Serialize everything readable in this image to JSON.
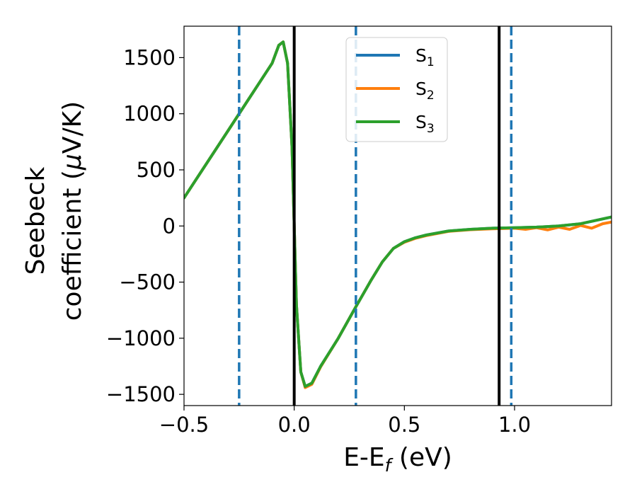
{
  "chart_data": {
    "type": "line",
    "title": "",
    "xlabel": {
      "main": "E-E",
      "sub": "f",
      "unit": " (eV)"
    },
    "ylabel": {
      "line1": "Seebeck",
      "line2": "coefficient  (",
      "mu": "μ",
      "unit": "V/K)"
    },
    "xlim": [
      -0.5,
      1.44
    ],
    "ylim": [
      -1600,
      1780
    ],
    "x_ticks": [
      -0.5,
      0.0,
      0.5,
      1.0
    ],
    "x_tick_labels": [
      "−0.5",
      "0.0",
      "0.5",
      "1.0"
    ],
    "y_ticks": [
      -1500,
      -1000,
      -500,
      0,
      500,
      1000,
      1500
    ],
    "y_tick_labels": [
      "−1500",
      "−1000",
      "−500",
      "0",
      "500",
      "1000",
      "1500"
    ],
    "grid": false,
    "legend_position": "top-center",
    "series": [
      {
        "name": "S",
        "sub": "1",
        "color": "#1f77b4",
        "x": [
          -0.5,
          -0.4,
          -0.3,
          -0.2,
          -0.1,
          -0.07,
          -0.05,
          -0.03,
          -0.01,
          0.0,
          0.01,
          0.03,
          0.05,
          0.08,
          0.12,
          0.2,
          0.28,
          0.35,
          0.4,
          0.45,
          0.5,
          0.55,
          0.6,
          0.7,
          0.8,
          0.9,
          1.0,
          1.1,
          1.2,
          1.3,
          1.44
        ],
        "y": [
          250,
          550,
          850,
          1150,
          1450,
          1610,
          1640,
          1450,
          700,
          0,
          -700,
          -1300,
          -1430,
          -1400,
          -1250,
          -1000,
          -720,
          -480,
          -320,
          -200,
          -140,
          -105,
          -80,
          -45,
          -30,
          -20,
          -15,
          -10,
          0,
          20,
          80
        ]
      },
      {
        "name": "S",
        "sub": "2",
        "color": "#ff7f0e",
        "x": [
          -0.5,
          -0.4,
          -0.3,
          -0.2,
          -0.1,
          -0.07,
          -0.05,
          -0.03,
          -0.01,
          0.0,
          0.01,
          0.03,
          0.05,
          0.08,
          0.12,
          0.2,
          0.28,
          0.35,
          0.4,
          0.45,
          0.5,
          0.55,
          0.6,
          0.7,
          0.8,
          0.9,
          1.0,
          1.05,
          1.1,
          1.15,
          1.2,
          1.25,
          1.3,
          1.35,
          1.4,
          1.44
        ],
        "y": [
          250,
          550,
          850,
          1150,
          1450,
          1610,
          1640,
          1450,
          700,
          0,
          -700,
          -1300,
          -1440,
          -1410,
          -1255,
          -1000,
          -720,
          -480,
          -320,
          -200,
          -145,
          -110,
          -85,
          -48,
          -33,
          -25,
          -20,
          -30,
          -15,
          -35,
          -10,
          -30,
          5,
          -20,
          20,
          35
        ]
      },
      {
        "name": "S",
        "sub": "3",
        "color": "#2ca02c",
        "x": [
          -0.5,
          -0.4,
          -0.3,
          -0.2,
          -0.1,
          -0.07,
          -0.05,
          -0.03,
          -0.01,
          0.0,
          0.01,
          0.03,
          0.05,
          0.08,
          0.12,
          0.2,
          0.28,
          0.35,
          0.4,
          0.45,
          0.5,
          0.55,
          0.6,
          0.7,
          0.8,
          0.9,
          1.0,
          1.1,
          1.2,
          1.3,
          1.44
        ],
        "y": [
          250,
          550,
          850,
          1150,
          1450,
          1610,
          1640,
          1450,
          700,
          0,
          -700,
          -1300,
          -1430,
          -1400,
          -1250,
          -1000,
          -720,
          -480,
          -320,
          -200,
          -140,
          -105,
          -80,
          -45,
          -30,
          -20,
          -15,
          -10,
          0,
          20,
          80
        ]
      }
    ],
    "vlines": [
      {
        "x": 0.0,
        "style": "solid",
        "color": "#000000"
      },
      {
        "x": 0.93,
        "style": "solid",
        "color": "#000000"
      },
      {
        "x": -0.25,
        "style": "dashed",
        "color": "#1f77b4"
      },
      {
        "x": 0.28,
        "style": "dashed",
        "color": "#1f77b4"
      },
      {
        "x": 0.985,
        "style": "dashed",
        "color": "#1f77b4"
      }
    ]
  }
}
